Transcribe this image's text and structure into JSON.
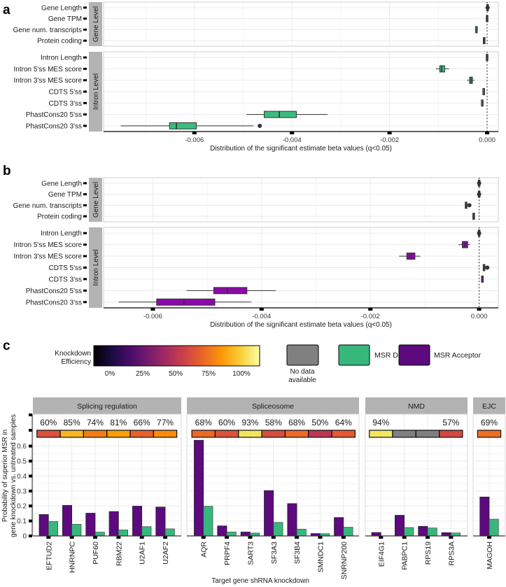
{
  "panel_labels": [
    "a",
    "b",
    "c"
  ],
  "chart_data": [
    {
      "type": "boxplot",
      "panel": "a",
      "xlabel": "Distribution of the significant estimate beta values (q<0.05)",
      "xticks": [
        -0.006,
        -0.004,
        -0.002,
        0.0
      ],
      "xtick_labels": [
        "-0.006",
        "-0.004",
        "-0.002",
        "0.000"
      ],
      "xlim": [
        -0.00783,
        0.00023
      ],
      "reference_line": 0.0,
      "box_color": "#3dbb7f",
      "groups": [
        {
          "label": "Gene Level",
          "rows": [
            {
              "name": "Gene Length",
              "min": 1e-05,
              "q1": 1e-05,
              "median": 1e-05,
              "q3": 1e-05,
              "max": 1e-05,
              "outliers": [
                1e-05
              ]
            },
            {
              "name": "Gene TPM",
              "min": 0.0,
              "q1": 0.0,
              "median": 0.0,
              "q3": 1e-05,
              "max": 1e-05,
              "outliers": []
            },
            {
              "name": "Gene num. transcripts",
              "min": -0.00023,
              "q1": -0.00022,
              "median": -0.00021,
              "q3": -0.0002,
              "max": -0.00019,
              "outliers": []
            },
            {
              "name": "Protein coding",
              "min": -7e-05,
              "q1": -6e-05,
              "median": -6e-05,
              "q3": -5e-05,
              "max": -4e-05,
              "outliers": []
            }
          ]
        },
        {
          "label": "Intron Level",
          "rows": [
            {
              "name": "Intron Length",
              "min": -1e-05,
              "q1": 0.0,
              "median": 0.0,
              "q3": 1e-05,
              "max": 2e-05,
              "outliers": []
            },
            {
              "name": "Intron 5'ss MES score",
              "min": -0.00105,
              "q1": -0.00097,
              "median": -0.00093,
              "q3": -0.00087,
              "max": -0.00078,
              "outliers": []
            },
            {
              "name": "Intron 3'ss MES score",
              "min": -0.00041,
              "q1": -0.00036,
              "median": -0.00033,
              "q3": -0.0003,
              "max": -0.00026,
              "outliers": []
            },
            {
              "name": "CDTS 5'ss",
              "min": -7e-05,
              "q1": -7e-05,
              "median": -6e-05,
              "q3": -5e-05,
              "max": -5e-05,
              "outliers": []
            },
            {
              "name": "CDTS 3'ss",
              "min": -0.0001,
              "q1": -0.0001,
              "median": -9e-05,
              "q3": -8e-05,
              "max": -8e-05,
              "outliers": []
            },
            {
              "name": "PhastCons20 5'ss",
              "min": -0.00493,
              "q1": -0.00457,
              "median": -0.00426,
              "q3": -0.00391,
              "max": -0.00327,
              "outliers": []
            },
            {
              "name": "PhastCons20 3'ss",
              "min": -0.00751,
              "q1": -0.00651,
              "median": -0.00637,
              "q3": -0.00596,
              "max": -0.00479,
              "outliers": [
                -0.00466
              ]
            }
          ]
        }
      ]
    },
    {
      "type": "boxplot",
      "panel": "b",
      "xlabel": "Distribution of the significant estimate beta values (q<0.05)",
      "xticks": [
        -0.006,
        -0.004,
        -0.002,
        0.0
      ],
      "xtick_labels": [
        "-0.006",
        "-0.004",
        "-0.002",
        "0.000"
      ],
      "xlim": [
        -0.0069,
        0.00035
      ],
      "reference_line": 0.0,
      "box_color": "#8b09a6",
      "groups": [
        {
          "label": "Gene Level",
          "rows": [
            {
              "name": "Gene Length",
              "min": 0.0,
              "q1": 0.0,
              "median": 0.0,
              "q3": 0.0,
              "max": 0.0,
              "outliers": [
                0.0
              ]
            },
            {
              "name": "Gene TPM",
              "min": 0.0,
              "q1": 0.0,
              "median": 0.0,
              "q3": 0.0,
              "max": 0.0,
              "outliers": [
                0.0
              ]
            },
            {
              "name": "Gene num. transcripts",
              "min": -0.00025,
              "q1": -0.00024,
              "median": -0.00023,
              "q3": -0.00022,
              "max": -0.00021,
              "outliers": [
                -0.00018
              ]
            },
            {
              "name": "Protein coding",
              "min": -0.00011,
              "q1": -0.0001,
              "median": -0.0001,
              "q3": -9e-05,
              "max": -9e-05,
              "outliers": []
            }
          ]
        },
        {
          "label": "Intron Level",
          "rows": [
            {
              "name": "Intron Length",
              "min": 0.0,
              "q1": 0.0,
              "median": 0.0,
              "q3": 0.0,
              "max": 0.0,
              "outliers": [
                0.0
              ]
            },
            {
              "name": "Intron 5'ss MES score",
              "min": -0.00038,
              "q1": -0.00031,
              "median": -0.00026,
              "q3": -0.00021,
              "max": -0.00017,
              "outliers": []
            },
            {
              "name": "Intron 3'ss MES score",
              "min": -0.00147,
              "q1": -0.00133,
              "median": -0.00125,
              "q3": -0.00118,
              "max": -0.00108,
              "outliers": []
            },
            {
              "name": "CDTS 5'ss",
              "min": 8e-05,
              "q1": 9e-05,
              "median": 0.0001,
              "q3": 0.00011,
              "max": 0.00012,
              "outliers": [
                0.00015
              ]
            },
            {
              "name": "CDTS 3'ss",
              "min": 6e-05,
              "q1": 6e-05,
              "median": 7e-05,
              "q3": 8e-05,
              "max": 8e-05,
              "outliers": []
            },
            {
              "name": "PhastCons20 5'ss",
              "min": -0.00538,
              "q1": -0.00488,
              "median": -0.00463,
              "q3": -0.00427,
              "max": -0.00374,
              "outliers": []
            },
            {
              "name": "PhastCons20 3'ss",
              "min": -0.00663,
              "q1": -0.00593,
              "median": -0.00543,
              "q3": -0.00486,
              "max": -0.00419,
              "outliers": []
            }
          ]
        }
      ]
    },
    {
      "type": "bar",
      "panel": "c",
      "xlabel": "Target gene shRNA knockdown",
      "ylabel": "Probability of superior MSR in gene knockdown vs. untreated samples",
      "ylabel_lines": [
        "Probability of superior MSR in",
        "gene knockdown vs. untreated samples"
      ],
      "ylim": [
        0,
        0.65
      ],
      "yticks": [
        0,
        0.1,
        0.2,
        0.3,
        0.4,
        0.5,
        0.6
      ],
      "ytick_labels": [
        "0",
        "0.1",
        "0.2",
        "0.3",
        "0.4",
        "0.5",
        "0.6"
      ],
      "series": [
        {
          "name": "MSR Acceptor",
          "color": "#5c0a7e"
        },
        {
          "name": "MSR Donor",
          "color": "#36b87c"
        }
      ],
      "legend": {
        "knockdown_title_lines": [
          "Knockdown",
          "Efficiency"
        ],
        "scale_labels": [
          "0%",
          "25%",
          "50%",
          "75%",
          "100%"
        ],
        "scale_colors": [
          "#000004",
          "#1b0c41",
          "#4a0c6b",
          "#781c6d",
          "#a52c60",
          "#cf4446",
          "#ed6925",
          "#fb9b06",
          "#f7d13d",
          "#fcffa4"
        ],
        "na_label_lines": [
          "No data",
          "available"
        ],
        "na_color": "#808080",
        "position": "top"
      },
      "facets": [
        {
          "name": "Splicing regulation",
          "genes": [
            {
              "gene": "EFTUD2",
              "knockdown": "60%",
              "knockdown_color": "#dd513a",
              "acceptor": 0.143,
              "donor": 0.096
            },
            {
              "gene": "HNRNPC",
              "knockdown": "85%",
              "knockdown_color": "#f9b621",
              "acceptor": 0.204,
              "donor": 0.078
            },
            {
              "gene": "PUF60",
              "knockdown": "74%",
              "knockdown_color": "#f57d15",
              "acceptor": 0.152,
              "donor": 0.025
            },
            {
              "gene": "RBM22",
              "knockdown": "81%",
              "knockdown_color": "#fb9f07",
              "acceptor": 0.163,
              "donor": 0.04
            },
            {
              "gene": "U2AF1",
              "knockdown": "66%",
              "knockdown_color": "#e8602d",
              "acceptor": 0.199,
              "donor": 0.062
            },
            {
              "gene": "U2AF2",
              "knockdown": "77%",
              "knockdown_color": "#f98c0a",
              "acceptor": 0.193,
              "donor": 0.047
            }
          ]
        },
        {
          "name": "Spliceosome",
          "genes": [
            {
              "gene": "AQR",
              "knockdown": "68%",
              "knockdown_color": "#ed6925",
              "acceptor": 0.639,
              "donor": 0.198
            },
            {
              "gene": "PRPF4",
              "knockdown": "60%",
              "knockdown_color": "#dd513a",
              "acceptor": 0.067,
              "donor": 0.026
            },
            {
              "gene": "SART3",
              "knockdown": "93%",
              "knockdown_color": "#f1e55d",
              "acceptor": 0.026,
              "donor": 0.019
            },
            {
              "gene": "SF3A3",
              "knockdown": "58%",
              "knockdown_color": "#d94d3d",
              "acceptor": 0.303,
              "donor": 0.09
            },
            {
              "gene": "SF3B4",
              "knockdown": "68%",
              "knockdown_color": "#ed6925",
              "acceptor": 0.216,
              "donor": 0.045
            },
            {
              "gene": "SMNDC1",
              "knockdown": "50%",
              "knockdown_color": "#bc3754",
              "acceptor": 0.016,
              "donor": 0.015
            },
            {
              "gene": "SNRNP200",
              "knockdown": "64%",
              "knockdown_color": "#e45a31",
              "acceptor": 0.123,
              "donor": 0.058
            }
          ]
        },
        {
          "name": "NMD",
          "genes": [
            {
              "gene": "EIF4G1",
              "knockdown": "94%",
              "knockdown_color": "#f2e661",
              "acceptor": 0.023,
              "donor": 0.0
            },
            {
              "gene": "PABPC1",
              "knockdown": null,
              "knockdown_color": "#808080",
              "acceptor": 0.138,
              "donor": 0.056
            },
            {
              "gene": "RPS19",
              "knockdown": null,
              "knockdown_color": "#808080",
              "acceptor": 0.064,
              "donor": 0.053
            },
            {
              "gene": "RPS3A",
              "knockdown": "57%",
              "knockdown_color": "#d44842",
              "acceptor": 0.022,
              "donor": 0.02
            }
          ]
        },
        {
          "name": "EJC",
          "genes": [
            {
              "gene": "MAGOH",
              "knockdown": "69%",
              "knockdown_color": "#ef6e21",
              "acceptor": 0.26,
              "donor": 0.112
            }
          ]
        }
      ]
    }
  ]
}
